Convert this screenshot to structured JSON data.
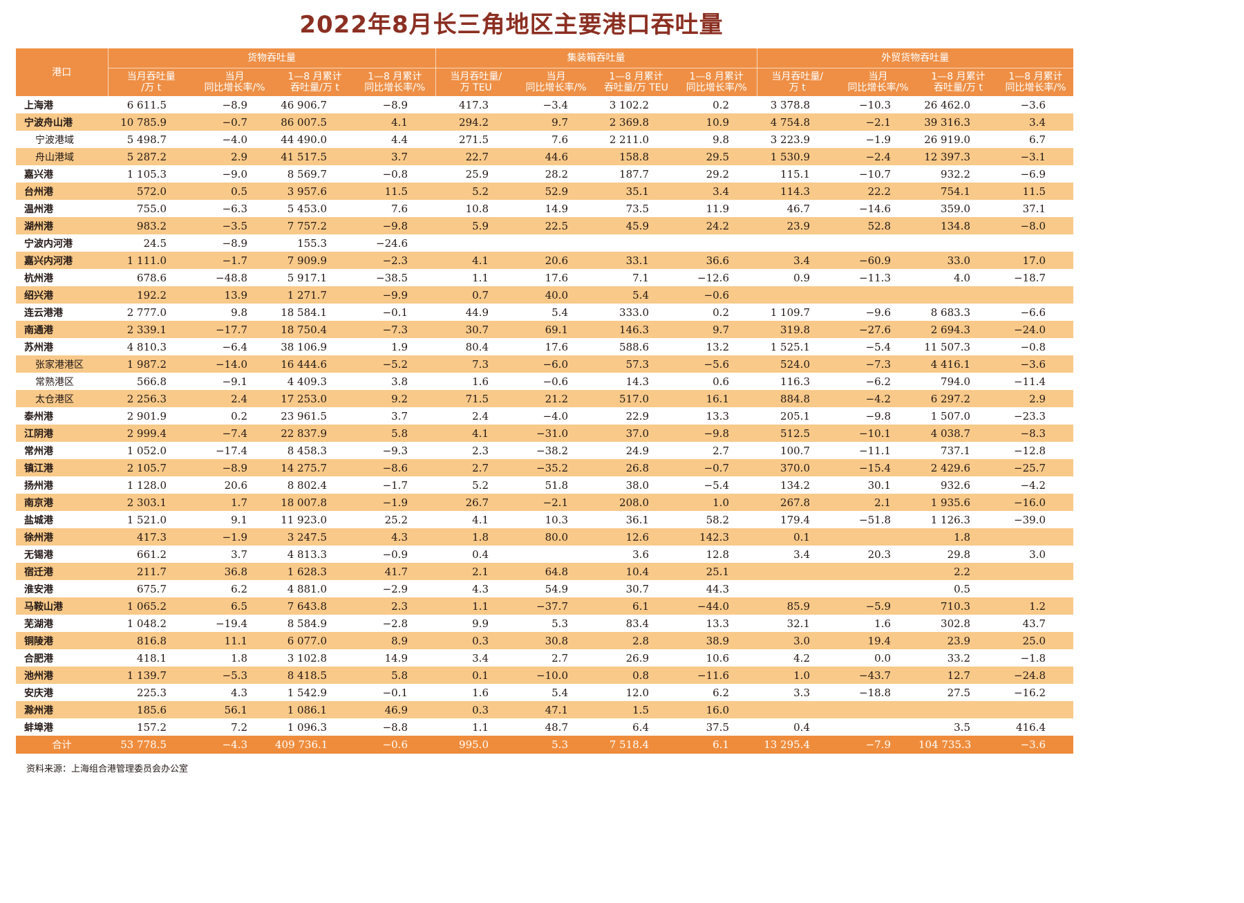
{
  "title": "2022年8月长三角地区主要港口吞吐量",
  "header": {
    "port_label": "港口",
    "groups": [
      "货物吞吐量",
      "集装箱吞吐量",
      "外贸货物吞吐量"
    ],
    "subcolumns": [
      [
        "当月吞吐量",
        "/万 t"
      ],
      [
        "当月",
        "同比增长率/%"
      ],
      [
        "1—8 月累计",
        "吞吐量/万 t"
      ],
      [
        "1—8 月累计",
        "同比增长率/%"
      ],
      [
        "当月吞吐量/",
        "万 TEU"
      ],
      [
        "当月",
        "同比增长率/%"
      ],
      [
        "1—8 月累计",
        "吞吐量/万 TEU"
      ],
      [
        "1—8 月累计",
        "同比增长率/%"
      ],
      [
        "当月吞吐量/",
        "万 t"
      ],
      [
        "当月",
        "同比增长率/%"
      ],
      [
        "1—8 月累计",
        "吞吐量/万 t"
      ],
      [
        "1—8 月累计",
        "同比增长率/%"
      ]
    ]
  },
  "rows": [
    {
      "port": "上海港",
      "sub": false,
      "v": [
        "6 611.5",
        "−8.9",
        "46 906.7",
        "−8.9",
        "417.3",
        "−3.4",
        "3 102.2",
        "0.2",
        "3 378.8",
        "−10.3",
        "26 462.0",
        "−3.6"
      ]
    },
    {
      "port": "宁波舟山港",
      "sub": false,
      "v": [
        "10 785.9",
        "−0.7",
        "86 007.5",
        "4.1",
        "294.2",
        "9.7",
        "2 369.8",
        "10.9",
        "4 754.8",
        "−2.1",
        "39 316.3",
        "3.4"
      ]
    },
    {
      "port": "宁波港域",
      "sub": true,
      "v": [
        "5 498.7",
        "−4.0",
        "44 490.0",
        "4.4",
        "271.5",
        "7.6",
        "2 211.0",
        "9.8",
        "3 223.9",
        "−1.9",
        "26 919.0",
        "6.7"
      ]
    },
    {
      "port": "舟山港域",
      "sub": true,
      "v": [
        "5 287.2",
        "2.9",
        "41 517.5",
        "3.7",
        "22.7",
        "44.6",
        "158.8",
        "29.5",
        "1 530.9",
        "−2.4",
        "12 397.3",
        "−3.1"
      ]
    },
    {
      "port": "嘉兴港",
      "sub": false,
      "v": [
        "1 105.3",
        "−9.0",
        "8 569.7",
        "−0.8",
        "25.9",
        "28.2",
        "187.7",
        "29.2",
        "115.1",
        "−10.7",
        "932.2",
        "−6.9"
      ]
    },
    {
      "port": "台州港",
      "sub": false,
      "v": [
        "572.0",
        "0.5",
        "3 957.6",
        "11.5",
        "5.2",
        "52.9",
        "35.1",
        "3.4",
        "114.3",
        "22.2",
        "754.1",
        "11.5"
      ]
    },
    {
      "port": "温州港",
      "sub": false,
      "v": [
        "755.0",
        "−6.3",
        "5 453.0",
        "7.6",
        "10.8",
        "14.9",
        "73.5",
        "11.9",
        "46.7",
        "−14.6",
        "359.0",
        "37.1"
      ]
    },
    {
      "port": "湖州港",
      "sub": false,
      "v": [
        "983.2",
        "−3.5",
        "7 757.2",
        "−9.8",
        "5.9",
        "22.5",
        "45.9",
        "24.2",
        "23.9",
        "52.8",
        "134.8",
        "−8.0"
      ]
    },
    {
      "port": "宁波内河港",
      "sub": false,
      "v": [
        "24.5",
        "−8.9",
        "155.3",
        "−24.6",
        "",
        "",
        "",
        "",
        "",
        "",
        "",
        ""
      ]
    },
    {
      "port": "嘉兴内河港",
      "sub": false,
      "v": [
        "1 111.0",
        "−1.7",
        "7 909.9",
        "−2.3",
        "4.1",
        "20.6",
        "33.1",
        "36.6",
        "3.4",
        "−60.9",
        "33.0",
        "17.0"
      ]
    },
    {
      "port": "杭州港",
      "sub": false,
      "v": [
        "678.6",
        "−48.8",
        "5 917.1",
        "−38.5",
        "1.1",
        "17.6",
        "7.1",
        "−12.6",
        "0.9",
        "−11.3",
        "4.0",
        "−18.7"
      ]
    },
    {
      "port": "绍兴港",
      "sub": false,
      "v": [
        "192.2",
        "13.9",
        "1 271.7",
        "−9.9",
        "0.7",
        "40.0",
        "5.4",
        "−0.6",
        "",
        "",
        "",
        ""
      ]
    },
    {
      "port": "连云港港",
      "sub": false,
      "v": [
        "2 777.0",
        "9.8",
        "18 584.1",
        "−0.1",
        "44.9",
        "5.4",
        "333.0",
        "0.2",
        "1 109.7",
        "−9.6",
        "8 683.3",
        "−6.6"
      ]
    },
    {
      "port": "南通港",
      "sub": false,
      "v": [
        "2 339.1",
        "−17.7",
        "18 750.4",
        "−7.3",
        "30.7",
        "69.1",
        "146.3",
        "9.7",
        "319.8",
        "−27.6",
        "2 694.3",
        "−24.0"
      ]
    },
    {
      "port": "苏州港",
      "sub": false,
      "v": [
        "4 810.3",
        "−6.4",
        "38 106.9",
        "1.9",
        "80.4",
        "17.6",
        "588.6",
        "13.2",
        "1 525.1",
        "−5.4",
        "11 507.3",
        "−0.8"
      ]
    },
    {
      "port": "张家港港区",
      "sub": true,
      "v": [
        "1 987.2",
        "−14.0",
        "16 444.6",
        "−5.2",
        "7.3",
        "−6.0",
        "57.3",
        "−5.6",
        "524.0",
        "−7.3",
        "4 416.1",
        "−3.6"
      ]
    },
    {
      "port": "常熟港区",
      "sub": true,
      "v": [
        "566.8",
        "−9.1",
        "4 409.3",
        "3.8",
        "1.6",
        "−0.6",
        "14.3",
        "0.6",
        "116.3",
        "−6.2",
        "794.0",
        "−11.4"
      ]
    },
    {
      "port": "太仓港区",
      "sub": true,
      "v": [
        "2 256.3",
        "2.4",
        "17 253.0",
        "9.2",
        "71.5",
        "21.2",
        "517.0",
        "16.1",
        "884.8",
        "−4.2",
        "6 297.2",
        "2.9"
      ]
    },
    {
      "port": "泰州港",
      "sub": false,
      "v": [
        "2 901.9",
        "0.2",
        "23 961.5",
        "3.7",
        "2.4",
        "−4.0",
        "22.9",
        "13.3",
        "205.1",
        "−9.8",
        "1 507.0",
        "−23.3"
      ]
    },
    {
      "port": "江阴港",
      "sub": false,
      "v": [
        "2 999.4",
        "−7.4",
        "22 837.9",
        "5.8",
        "4.1",
        "−31.0",
        "37.0",
        "−9.8",
        "512.5",
        "−10.1",
        "4 038.7",
        "−8.3"
      ]
    },
    {
      "port": "常州港",
      "sub": false,
      "v": [
        "1 052.0",
        "−17.4",
        "8 458.3",
        "−9.3",
        "2.3",
        "−38.2",
        "24.9",
        "2.7",
        "100.7",
        "−11.1",
        "737.1",
        "−12.8"
      ]
    },
    {
      "port": "镇江港",
      "sub": false,
      "v": [
        "2 105.7",
        "−8.9",
        "14 275.7",
        "−8.6",
        "2.7",
        "−35.2",
        "26.8",
        "−0.7",
        "370.0",
        "−15.4",
        "2 429.6",
        "−25.7"
      ]
    },
    {
      "port": "扬州港",
      "sub": false,
      "v": [
        "1 128.0",
        "20.6",
        "8 802.4",
        "−1.7",
        "5.2",
        "51.8",
        "38.0",
        "−5.4",
        "134.2",
        "30.1",
        "932.6",
        "−4.2"
      ]
    },
    {
      "port": "南京港",
      "sub": false,
      "v": [
        "2 303.1",
        "1.7",
        "18 007.8",
        "−1.9",
        "26.7",
        "−2.1",
        "208.0",
        "1.0",
        "267.8",
        "2.1",
        "1 935.6",
        "−16.0"
      ]
    },
    {
      "port": "盐城港",
      "sub": false,
      "v": [
        "1 521.0",
        "9.1",
        "11 923.0",
        "25.2",
        "4.1",
        "10.3",
        "36.1",
        "58.2",
        "179.4",
        "−51.8",
        "1 126.3",
        "−39.0"
      ]
    },
    {
      "port": "徐州港",
      "sub": false,
      "v": [
        "417.3",
        "−1.9",
        "3 247.5",
        "4.3",
        "1.8",
        "80.0",
        "12.6",
        "142.3",
        "0.1",
        "",
        "1.8",
        ""
      ]
    },
    {
      "port": "无锡港",
      "sub": false,
      "v": [
        "661.2",
        "3.7",
        "4 813.3",
        "−0.9",
        "0.4",
        "",
        "3.6",
        "12.8",
        "3.4",
        "20.3",
        "29.8",
        "3.0"
      ]
    },
    {
      "port": "宿迁港",
      "sub": false,
      "v": [
        "211.7",
        "36.8",
        "1 628.3",
        "41.7",
        "2.1",
        "64.8",
        "10.4",
        "25.1",
        "",
        "",
        "2.2",
        ""
      ]
    },
    {
      "port": "淮安港",
      "sub": false,
      "v": [
        "675.7",
        "6.2",
        "4 881.0",
        "−2.9",
        "4.3",
        "54.9",
        "30.7",
        "44.3",
        "",
        "",
        "0.5",
        ""
      ]
    },
    {
      "port": "马鞍山港",
      "sub": false,
      "v": [
        "1 065.2",
        "6.5",
        "7 643.8",
        "2.3",
        "1.1",
        "−37.7",
        "6.1",
        "−44.0",
        "85.9",
        "−5.9",
        "710.3",
        "1.2"
      ]
    },
    {
      "port": "芜湖港",
      "sub": false,
      "v": [
        "1 048.2",
        "−19.4",
        "8 584.9",
        "−2.8",
        "9.9",
        "5.3",
        "83.4",
        "13.3",
        "32.1",
        "1.6",
        "302.8",
        "43.7"
      ]
    },
    {
      "port": "铜陵港",
      "sub": false,
      "v": [
        "816.8",
        "11.1",
        "6 077.0",
        "8.9",
        "0.3",
        "30.8",
        "2.8",
        "38.9",
        "3.0",
        "19.4",
        "23.9",
        "25.0"
      ]
    },
    {
      "port": "合肥港",
      "sub": false,
      "v": [
        "418.1",
        "1.8",
        "3 102.8",
        "14.9",
        "3.4",
        "2.7",
        "26.9",
        "10.6",
        "4.2",
        "0.0",
        "33.2",
        "−1.8"
      ]
    },
    {
      "port": "池州港",
      "sub": false,
      "v": [
        "1 139.7",
        "−5.3",
        "8 418.5",
        "5.8",
        "0.1",
        "−10.0",
        "0.8",
        "−11.6",
        "1.0",
        "−43.7",
        "12.7",
        "−24.8"
      ]
    },
    {
      "port": "安庆港",
      "sub": false,
      "v": [
        "225.3",
        "4.3",
        "1 542.9",
        "−0.1",
        "1.6",
        "5.4",
        "12.0",
        "6.2",
        "3.3",
        "−18.8",
        "27.5",
        "−16.2"
      ]
    },
    {
      "port": "滁州港",
      "sub": false,
      "v": [
        "185.6",
        "56.1",
        "1 086.1",
        "46.9",
        "0.3",
        "47.1",
        "1.5",
        "16.0",
        "",
        "",
        "",
        ""
      ]
    },
    {
      "port": "蚌埠港",
      "sub": false,
      "v": [
        "157.2",
        "7.2",
        "1 096.3",
        "−8.8",
        "1.1",
        "48.7",
        "6.4",
        "37.5",
        "0.4",
        "",
        "3.5",
        "416.4"
      ]
    }
  ],
  "total": {
    "port": "合计",
    "v": [
      "53 778.5",
      "−4.3",
      "409 736.1",
      "−0.6",
      "995.0",
      "5.3",
      "7 518.4",
      "6.1",
      "13 295.4",
      "−7.9",
      "104 735.3",
      "−3.6"
    ]
  },
  "source": "资料来源：上海组合港管理委员会办公室",
  "colors": {
    "header": "#ee8f45",
    "alt_row": "#f8c989",
    "total_row": "#ef8c3c",
    "title": "#8b2f22"
  }
}
